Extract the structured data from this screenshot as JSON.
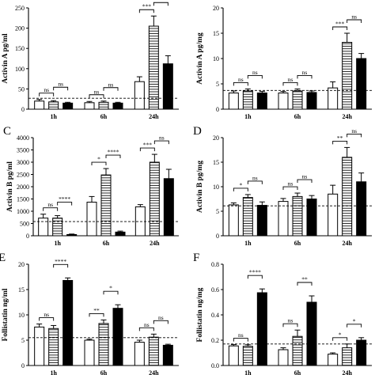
{
  "chart_data": [
    {
      "type": "bar",
      "panel_label": "",
      "ylabel": "Activin A pg/ml",
      "ylim": [
        0,
        250
      ],
      "yticks": [
        0,
        50,
        100,
        150,
        200,
        250
      ],
      "categories": [
        "1h",
        "6h",
        "24h"
      ],
      "values": [
        [
          20,
          18,
          15
        ],
        [
          16,
          17,
          15
        ],
        [
          68,
          205,
          112
        ]
      ],
      "errors": [
        [
          4,
          3,
          2
        ],
        [
          3,
          3,
          2
        ],
        [
          12,
          25,
          20
        ]
      ],
      "reference_line": 27,
      "annotations": [
        {
          "group": 0,
          "from": 0,
          "to": 1,
          "text": "ns"
        },
        {
          "group": 0,
          "from": 1,
          "to": 2,
          "text": "ns"
        },
        {
          "group": 1,
          "from": 0,
          "to": 1,
          "text": "ns"
        },
        {
          "group": 1,
          "from": 1,
          "to": 2,
          "text": "ns"
        },
        {
          "group": 2,
          "from": 0,
          "to": 1,
          "text": "***"
        },
        {
          "group": 2,
          "from": 1,
          "to": 2,
          "text": "*"
        }
      ]
    },
    {
      "type": "bar",
      "panel_label": "",
      "ylabel": "Activin A pg/mg",
      "ylim": [
        0,
        20
      ],
      "yticks": [
        0,
        5,
        10,
        15,
        20
      ],
      "categories": [
        "1h",
        "6h",
        "24h"
      ],
      "values": [
        [
          3.2,
          3.6,
          3.2
        ],
        [
          3.2,
          3.6,
          3.3
        ],
        [
          4.2,
          13.2,
          10.0
        ]
      ],
      "errors": [
        [
          0.4,
          0.4,
          0.3
        ],
        [
          0.3,
          0.4,
          0.3
        ],
        [
          1.2,
          1.8,
          1.0
        ]
      ],
      "reference_line": 3.7,
      "annotations": [
        {
          "group": 0,
          "from": 0,
          "to": 1,
          "text": "ns"
        },
        {
          "group": 0,
          "from": 1,
          "to": 2,
          "text": "ns"
        },
        {
          "group": 1,
          "from": 0,
          "to": 1,
          "text": "ns"
        },
        {
          "group": 1,
          "from": 1,
          "to": 2,
          "text": "ns"
        },
        {
          "group": 2,
          "from": 0,
          "to": 1,
          "text": "***"
        },
        {
          "group": 2,
          "from": 1,
          "to": 2,
          "text": "ns"
        }
      ]
    },
    {
      "type": "bar",
      "panel_label": "C",
      "ylabel": "Activin B pg/ml",
      "ylim": [
        0,
        4000
      ],
      "yticks": [
        0,
        500,
        1000,
        1500,
        2000,
        2500,
        3000,
        3500,
        4000
      ],
      "categories": [
        "1h",
        "6h",
        "24h"
      ],
      "values": [
        [
          720,
          720,
          50
        ],
        [
          1370,
          2480,
          150
        ],
        [
          1180,
          3000,
          2330
        ]
      ],
      "errors": [
        [
          160,
          100,
          20
        ],
        [
          230,
          260,
          40
        ],
        [
          90,
          320,
          380
        ]
      ],
      "reference_line": 580,
      "annotations": [
        {
          "group": 0,
          "from": 0,
          "to": 1,
          "text": "ns"
        },
        {
          "group": 0,
          "from": 1,
          "to": 2,
          "text": "****"
        },
        {
          "group": 1,
          "from": 0,
          "to": 1,
          "text": "*"
        },
        {
          "group": 1,
          "from": 1,
          "to": 2,
          "text": "****"
        },
        {
          "group": 2,
          "from": 0,
          "to": 1,
          "text": "***"
        },
        {
          "group": 2,
          "from": 1,
          "to": 2,
          "text": "ns"
        }
      ]
    },
    {
      "type": "bar",
      "panel_label": "D",
      "ylabel": "Activin B pg/mg",
      "ylim": [
        0,
        20
      ],
      "yticks": [
        0,
        5,
        10,
        15,
        20
      ],
      "categories": [
        "1h",
        "6h",
        "24h"
      ],
      "values": [
        [
          6.3,
          7.8,
          6.2
        ],
        [
          7.0,
          8.0,
          7.5
        ],
        [
          8.5,
          16.0,
          11.0
        ]
      ],
      "errors": [
        [
          0.4,
          0.6,
          0.7
        ],
        [
          0.6,
          0.7,
          0.7
        ],
        [
          1.8,
          2.0,
          1.8
        ]
      ],
      "reference_line": 6.1,
      "annotations": [
        {
          "group": 0,
          "from": 0,
          "to": 1,
          "text": "*"
        },
        {
          "group": 0,
          "from": 1,
          "to": 2,
          "text": "ns"
        },
        {
          "group": 1,
          "from": 0,
          "to": 1,
          "text": "ns"
        },
        {
          "group": 1,
          "from": 1,
          "to": 2,
          "text": "ns"
        },
        {
          "group": 2,
          "from": 0,
          "to": 1,
          "text": "**"
        },
        {
          "group": 2,
          "from": 1,
          "to": 2,
          "text": "ns"
        }
      ]
    },
    {
      "type": "bar",
      "panel_label": "E",
      "ylabel": "Follistatin ng/ml",
      "ylim": [
        0,
        20
      ],
      "yticks": [
        0,
        5,
        10,
        15,
        20
      ],
      "categories": [
        "1h",
        "6h",
        "24h"
      ],
      "values": [
        [
          7.6,
          7.3,
          16.8
        ],
        [
          5.0,
          8.3,
          11.3
        ],
        [
          4.6,
          5.6,
          4.0
        ]
      ],
      "errors": [
        [
          0.6,
          0.6,
          0.5
        ],
        [
          0.2,
          0.7,
          0.7
        ],
        [
          0.4,
          0.6,
          0.2
        ]
      ],
      "reference_line": 5.5,
      "annotations": [
        {
          "group": 0,
          "from": 0,
          "to": 1,
          "text": "ns"
        },
        {
          "group": 0,
          "from": 1,
          "to": 2,
          "text": "****"
        },
        {
          "group": 1,
          "from": 0,
          "to": 1,
          "text": "**"
        },
        {
          "group": 1,
          "from": 1,
          "to": 2,
          "text": "*"
        },
        {
          "group": 2,
          "from": 0,
          "to": 1,
          "text": "ns"
        },
        {
          "group": 2,
          "from": 1,
          "to": 2,
          "text": "ns"
        }
      ]
    },
    {
      "type": "bar",
      "panel_label": "F",
      "ylabel": "Follistatin ng/mg",
      "ylim": [
        0,
        0.8
      ],
      "yticks": [
        0.0,
        0.2,
        0.4,
        0.6,
        0.8
      ],
      "categories": [
        "1h",
        "6h",
        "24h"
      ],
      "values": [
        [
          0.155,
          0.152,
          0.575
        ],
        [
          0.125,
          0.23,
          0.5
        ],
        [
          0.09,
          0.14,
          0.2
        ]
      ],
      "errors": [
        [
          0.01,
          0.012,
          0.03
        ],
        [
          0.015,
          0.05,
          0.05
        ],
        [
          0.01,
          0.03,
          0.02
        ]
      ],
      "reference_line": 0.17,
      "annotations": [
        {
          "group": 0,
          "from": 0,
          "to": 1,
          "text": "ns"
        },
        {
          "group": 0,
          "from": 1,
          "to": 2,
          "text": "****"
        },
        {
          "group": 1,
          "from": 0,
          "to": 1,
          "text": "ns"
        },
        {
          "group": 1,
          "from": 1,
          "to": 2,
          "text": "**"
        },
        {
          "group": 2,
          "from": 0,
          "to": 1,
          "text": "*"
        },
        {
          "group": 2,
          "from": 1,
          "to": 2,
          "text": "*"
        }
      ]
    }
  ]
}
